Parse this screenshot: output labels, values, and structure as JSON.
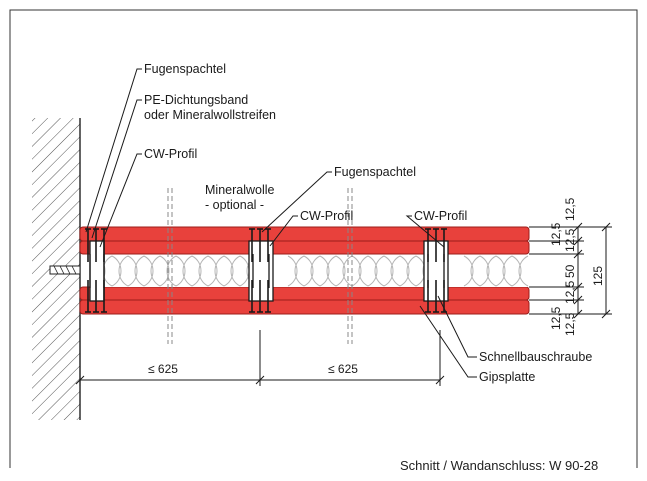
{
  "labels": {
    "fugenspachtel_1": "Fugenspachtel",
    "pe_band_line1": "PE-Dichtungsband",
    "pe_band_line2": "oder Mineralwollstreifen",
    "cw_profil_1": "CW-Profil",
    "mineralwolle_line1": "Mineralwolle",
    "mineralwolle_line2": "- optional -",
    "fugenspachtel_2": "Fugenspachtel",
    "cw_profil_2": "CW-Profil",
    "cw_profil_3": "CW-Profil",
    "schnellbauschraube": "Schnellbauschraube",
    "gipsplatte": "Gipsplatte"
  },
  "dimensions": {
    "spacing_left": "≤ 625",
    "spacing_right": "≤ 625",
    "layer_a": "12,5",
    "layer_b": "12,5",
    "layer_c": "12,5",
    "layer_d": "12,5",
    "layer_e": "12,5",
    "layer_f": "12,5",
    "core": "50",
    "total": "125"
  },
  "caption": "Schnitt / Wandanschluss: W 90-28",
  "colors": {
    "board": "#e8413c",
    "board_edge": "#9c1d1a",
    "insulation_stroke": "#b5b5b5",
    "line": "#1a1a1a"
  }
}
